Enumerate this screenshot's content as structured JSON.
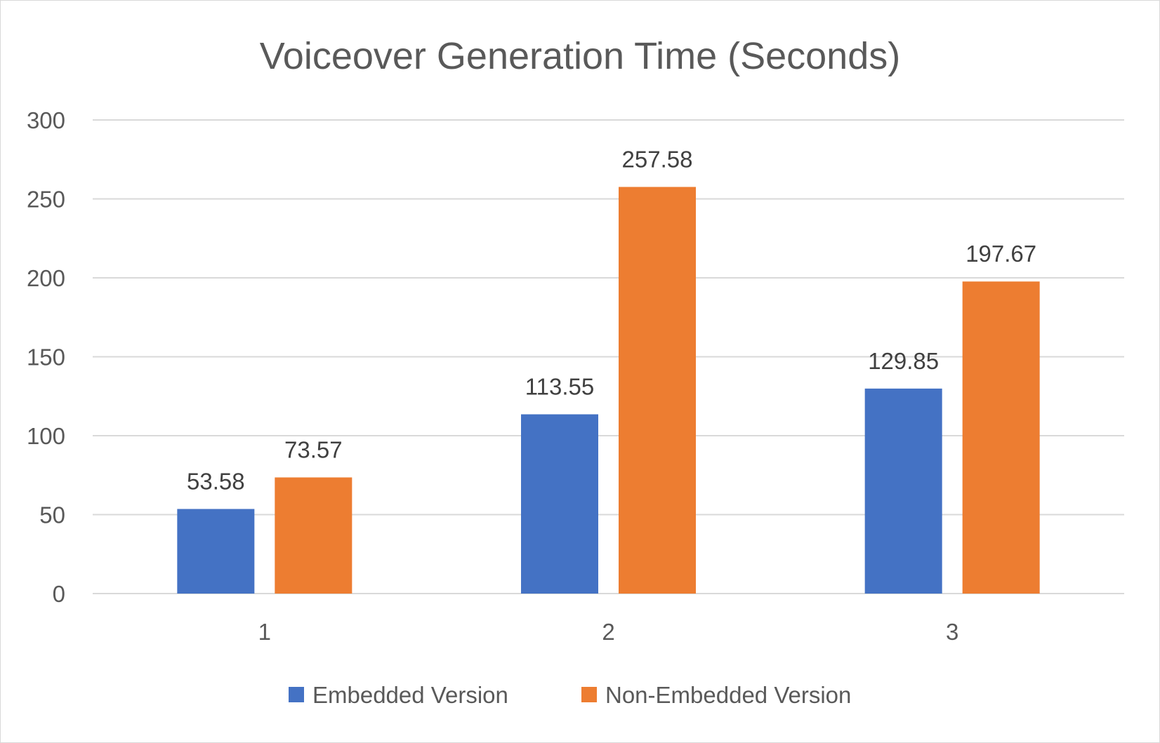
{
  "chart_data": {
    "type": "bar",
    "title": "Voiceover Generation Time (Seconds)",
    "xlabel": "",
    "ylabel": "",
    "categories": [
      "1",
      "2",
      "3"
    ],
    "series": [
      {
        "name": "Embedded Version",
        "color": "#4472C4",
        "values": [
          53.58,
          113.55,
          129.85
        ]
      },
      {
        "name": "Non-Embedded Version",
        "color": "#ED7D31",
        "values": [
          73.57,
          257.58,
          197.67
        ]
      }
    ],
    "ylim": [
      0,
      300
    ],
    "yticks": [
      0,
      50,
      100,
      150,
      200,
      250,
      300
    ],
    "grid": true,
    "legend_position": "bottom",
    "data_labels": true
  }
}
